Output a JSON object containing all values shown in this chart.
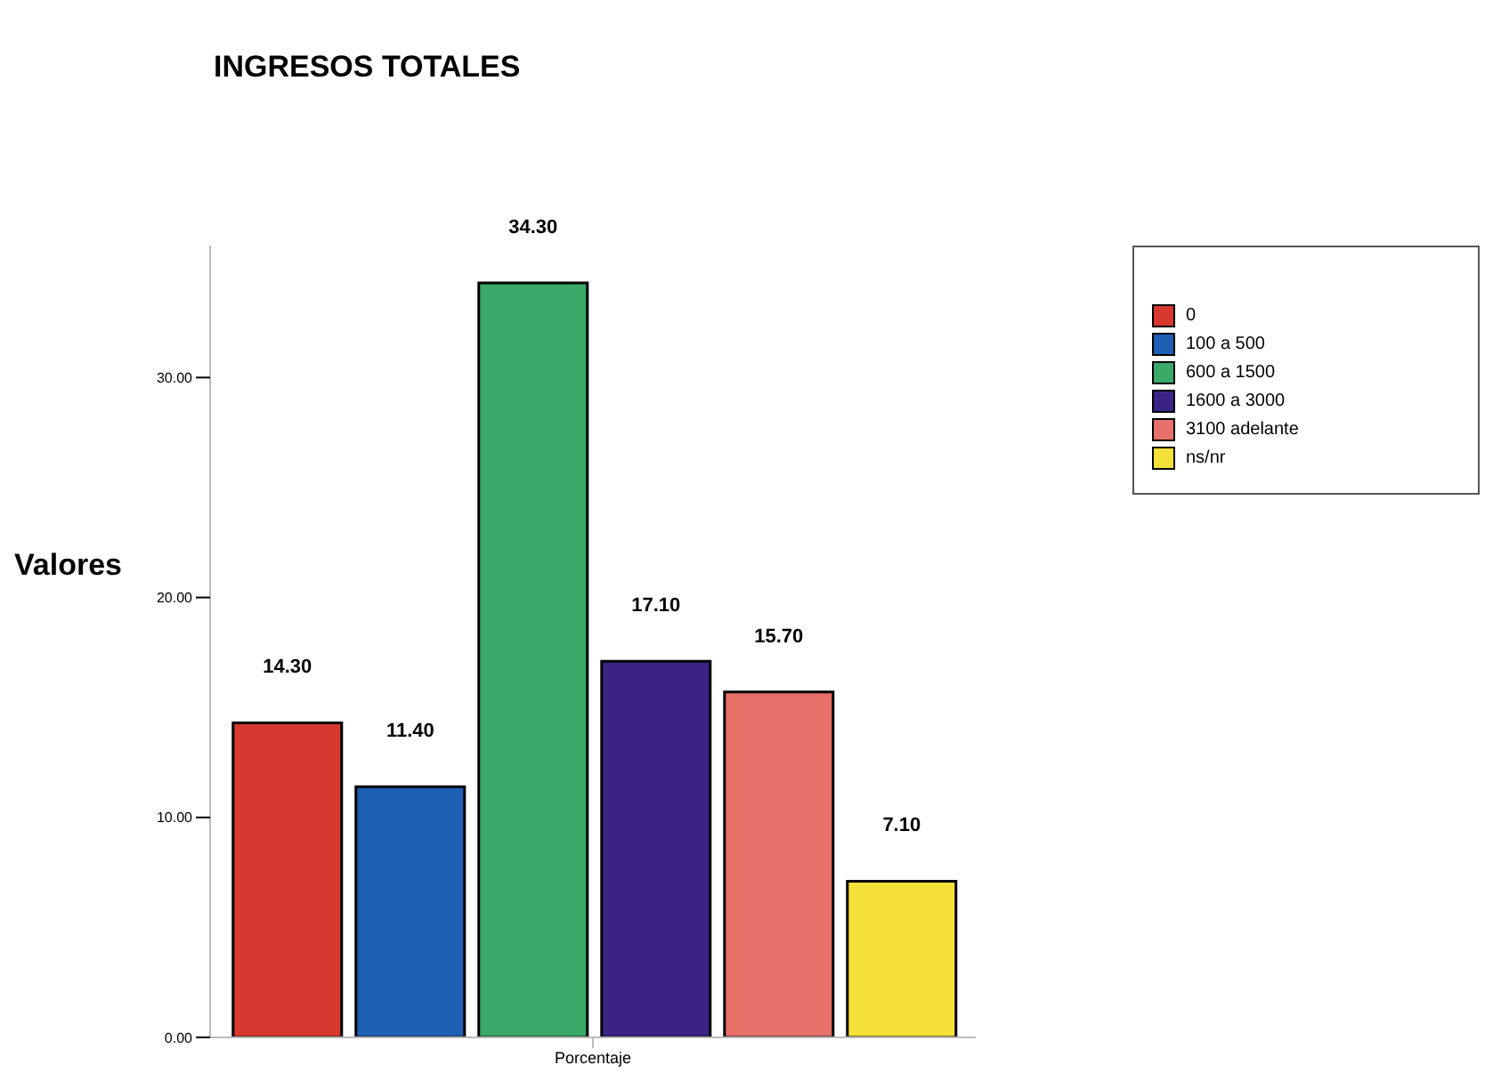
{
  "chart_data": {
    "type": "bar",
    "title": "INGRESOS TOTALES",
    "ylabel": "Valores",
    "categories": [
      "Porcentaje"
    ],
    "series": [
      {
        "name": "0",
        "color": "#d8392f",
        "values": [
          14.3
        ],
        "value_labels": [
          "14.30"
        ]
      },
      {
        "name": "100 a 500",
        "color": "#1f5fb4",
        "values": [
          11.4
        ],
        "value_labels": [
          "11.40"
        ]
      },
      {
        "name": "600 a 1500",
        "color": "#3aa867",
        "values": [
          34.3
        ],
        "value_labels": [
          "34.30"
        ]
      },
      {
        "name": "1600 a 3000",
        "color": "#3d2286",
        "values": [
          17.1
        ],
        "value_labels": [
          "17.10"
        ]
      },
      {
        "name": "3100 adelante",
        "color": "#e8706a",
        "values": [
          15.7
        ],
        "value_labels": [
          "15.70"
        ]
      },
      {
        "name": "ns/nr",
        "color": "#f5e03a",
        "values": [
          7.1
        ],
        "value_labels": [
          "7.10"
        ]
      }
    ],
    "ylim": [
      0,
      36
    ],
    "yticks": [
      {
        "value": 0,
        "label": "0.00"
      },
      {
        "value": 10,
        "label": "10.00"
      },
      {
        "value": 20,
        "label": "20.00"
      },
      {
        "value": 30,
        "label": "30.00"
      }
    ],
    "grid": false,
    "legend": "right"
  }
}
